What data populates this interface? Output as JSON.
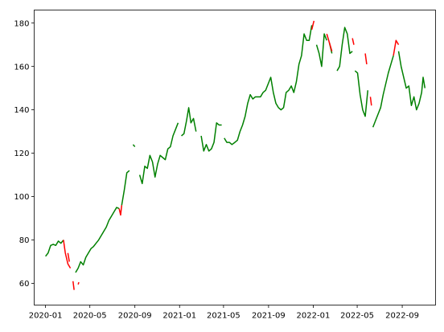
{
  "chart_data": {
    "type": "line",
    "title": "",
    "xlabel": "",
    "ylabel": "",
    "x_axis": {
      "type": "date",
      "range": [
        "2019-12-01",
        "2022-12-01"
      ],
      "ticks": [
        {
          "label": "2020-01",
          "value": "2020-01-01"
        },
        {
          "label": "2020-05",
          "value": "2020-05-01"
        },
        {
          "label": "2020-09",
          "value": "2020-09-01"
        },
        {
          "label": "2021-01",
          "value": "2021-01-01"
        },
        {
          "label": "2021-05",
          "value": "2021-05-01"
        },
        {
          "label": "2021-09",
          "value": "2021-09-01"
        },
        {
          "label": "2022-01",
          "value": "2022-01-01"
        },
        {
          "label": "2022-05",
          "value": "2022-05-01"
        },
        {
          "label": "2022-09",
          "value": "2022-09-01"
        }
      ]
    },
    "y_axis": {
      "range": [
        50,
        186
      ],
      "ticks": [
        60,
        80,
        100,
        120,
        140,
        160,
        180
      ]
    },
    "grid": false,
    "series": [
      {
        "color": "#008000",
        "segments": [
          [
            [
              "2020-01-01",
              72.5
            ],
            [
              "2020-01-08",
              74
            ],
            [
              "2020-01-15",
              77.5
            ],
            [
              "2020-01-22",
              78
            ],
            [
              "2020-01-29",
              77.5
            ],
            [
              "2020-02-05",
              79.5
            ],
            [
              "2020-02-12",
              78.5
            ],
            [
              "2020-02-19",
              80
            ]
          ],
          [
            [
              "2020-03-23",
              65
            ],
            [
              "2020-03-30",
              67
            ],
            [
              "2020-04-06",
              70
            ],
            [
              "2020-04-13",
              68.5
            ],
            [
              "2020-04-20",
              72
            ],
            [
              "2020-04-27",
              74
            ],
            [
              "2020-05-04",
              76
            ],
            [
              "2020-05-11",
              77
            ],
            [
              "2020-05-18",
              78.5
            ],
            [
              "2020-05-25",
              80
            ],
            [
              "2020-06-01",
              82
            ],
            [
              "2020-06-08",
              84
            ],
            [
              "2020-06-15",
              86
            ],
            [
              "2020-06-22",
              89
            ],
            [
              "2020-06-29",
              91
            ],
            [
              "2020-07-06",
              93
            ],
            [
              "2020-07-13",
              95
            ],
            [
              "2020-07-20",
              94.5
            ]
          ],
          [
            [
              "2020-07-27",
              96
            ],
            [
              "2020-08-03",
              103
            ],
            [
              "2020-08-10",
              111
            ],
            [
              "2020-08-17",
              112
            ]
          ],
          [
            [
              "2020-08-27",
              124
            ],
            [
              "2020-09-01",
              123
            ]
          ],
          [
            [
              "2020-09-14",
              110
            ],
            [
              "2020-09-21",
              106
            ],
            [
              "2020-09-28",
              114
            ],
            [
              "2020-10-05",
              113
            ],
            [
              "2020-10-12",
              119
            ],
            [
              "2020-10-19",
              116
            ],
            [
              "2020-10-26",
              109
            ],
            [
              "2020-11-02",
              115
            ],
            [
              "2020-11-09",
              119
            ],
            [
              "2020-11-16",
              118
            ],
            [
              "2020-11-23",
              117
            ],
            [
              "2020-11-30",
              122
            ],
            [
              "2020-12-07",
              123
            ],
            [
              "2020-12-14",
              128
            ],
            [
              "2020-12-21",
              131
            ],
            [
              "2020-12-28",
              134
            ]
          ],
          [
            [
              "2021-01-06",
              128
            ],
            [
              "2021-01-13",
              129
            ],
            [
              "2021-01-20",
              135
            ],
            [
              "2021-01-26",
              141
            ],
            [
              "2021-02-01",
              134
            ],
            [
              "2021-02-08",
              136
            ],
            [
              "2021-02-15",
              130
            ]
          ],
          [
            [
              "2021-03-01",
              128
            ],
            [
              "2021-03-08",
              121
            ],
            [
              "2021-03-15",
              124
            ],
            [
              "2021-03-22",
              121
            ],
            [
              "2021-03-29",
              122
            ],
            [
              "2021-04-05",
              125
            ],
            [
              "2021-04-12",
              134
            ],
            [
              "2021-04-19",
              133
            ],
            [
              "2021-04-26",
              133
            ]
          ],
          [
            [
              "2021-05-03",
              127
            ],
            [
              "2021-05-10",
              125
            ],
            [
              "2021-05-17",
              125
            ],
            [
              "2021-05-24",
              124
            ],
            [
              "2021-06-01",
              125
            ],
            [
              "2021-06-08",
              126
            ],
            [
              "2021-06-15",
              130
            ],
            [
              "2021-06-22",
              133
            ],
            [
              "2021-06-29",
              137
            ],
            [
              "2021-07-06",
              143
            ],
            [
              "2021-07-13",
              147
            ],
            [
              "2021-07-20",
              145
            ],
            [
              "2021-07-27",
              146
            ],
            [
              "2021-08-03",
              146
            ],
            [
              "2021-08-10",
              146
            ],
            [
              "2021-08-17",
              148
            ],
            [
              "2021-08-24",
              149
            ],
            [
              "2021-08-31",
              152
            ],
            [
              "2021-09-07",
              155
            ],
            [
              "2021-09-14",
              148
            ],
            [
              "2021-09-21",
              143
            ],
            [
              "2021-09-28",
              141
            ],
            [
              "2021-10-05",
              140
            ],
            [
              "2021-10-12",
              141
            ],
            [
              "2021-10-19",
              148
            ],
            [
              "2021-10-26",
              149
            ],
            [
              "2021-11-02",
              151
            ],
            [
              "2021-11-09",
              148
            ],
            [
              "2021-11-16",
              153
            ],
            [
              "2021-11-23",
              161
            ],
            [
              "2021-11-30",
              165
            ],
            [
              "2021-12-07",
              175
            ],
            [
              "2021-12-14",
              172
            ],
            [
              "2021-12-21",
              172
            ],
            [
              "2021-12-28",
              179
            ]
          ],
          [
            [
              "2022-01-10",
              170
            ],
            [
              "2022-01-17",
              166
            ],
            [
              "2022-01-24",
              160
            ],
            [
              "2022-01-31",
              175
            ],
            [
              "2022-02-07",
              172
            ]
          ],
          [
            [
              "2022-02-14",
              171
            ],
            [
              "2022-02-21",
              166
            ]
          ],
          [
            [
              "2022-03-07",
              158
            ],
            [
              "2022-03-14",
              160
            ],
            [
              "2022-03-21",
              170
            ],
            [
              "2022-03-28",
              178
            ],
            [
              "2022-04-04",
              175
            ],
            [
              "2022-04-11",
              166
            ],
            [
              "2022-04-18",
              167
            ]
          ],
          [
            [
              "2022-04-25",
              158
            ],
            [
              "2022-05-02",
              157
            ],
            [
              "2022-05-09",
              147
            ],
            [
              "2022-05-16",
              140
            ],
            [
              "2022-05-23",
              137
            ],
            [
              "2022-05-30",
              149
            ]
          ],
          [
            [
              "2022-06-13",
              132
            ],
            [
              "2022-06-20",
              135
            ],
            [
              "2022-06-27",
              138
            ],
            [
              "2022-07-04",
              141
            ],
            [
              "2022-07-11",
              147
            ],
            [
              "2022-07-18",
              152
            ],
            [
              "2022-07-25",
              157
            ],
            [
              "2022-08-01",
              161
            ],
            [
              "2022-08-08",
              165
            ]
          ],
          [
            [
              "2022-08-22",
              167
            ],
            [
              "2022-08-29",
              160
            ],
            [
              "2022-09-05",
              155
            ],
            [
              "2022-09-12",
              150
            ],
            [
              "2022-09-19",
              151
            ],
            [
              "2022-09-26",
              142
            ],
            [
              "2022-10-03",
              146
            ],
            [
              "2022-10-10",
              140
            ],
            [
              "2022-10-17",
              143
            ],
            [
              "2022-10-24",
              148
            ],
            [
              "2022-10-28",
              155
            ],
            [
              "2022-11-02",
              150
            ]
          ]
        ]
      },
      {
        "color": "#ff0000",
        "segments": [
          [
            [
              "2020-02-19",
              80
            ],
            [
              "2020-02-24",
              74
            ],
            [
              "2020-03-02",
              69
            ],
            [
              "2020-03-09",
              67
            ]
          ],
          [
            [
              "2020-03-02",
              74
            ],
            [
              "2020-03-06",
              70
            ]
          ],
          [
            [
              "2020-03-16",
              61
            ],
            [
              "2020-03-19",
              57
            ]
          ],
          [
            [
              "2020-03-30",
              59.5
            ],
            [
              "2020-04-01",
              60.5
            ]
          ],
          [
            [
              "2020-07-20",
              94.5
            ],
            [
              "2020-07-24",
              91.5
            ],
            [
              "2020-07-27",
              96
            ]
          ],
          [
            [
              "2021-12-28",
              177
            ],
            [
              "2022-01-03",
              181
            ]
          ],
          [
            [
              "2022-02-07",
              175
            ],
            [
              "2022-02-14",
              171
            ],
            [
              "2022-02-21",
              167
            ]
          ],
          [
            [
              "2022-04-18",
              173
            ],
            [
              "2022-04-22",
              170
            ]
          ],
          [
            [
              "2022-05-23",
              166
            ],
            [
              "2022-05-27",
              161
            ]
          ],
          [
            [
              "2022-06-06",
              146
            ],
            [
              "2022-06-09",
              142
            ]
          ],
          [
            [
              "2022-08-08",
              165
            ],
            [
              "2022-08-15",
              172
            ],
            [
              "2022-08-22",
              170
            ]
          ]
        ]
      }
    ]
  }
}
